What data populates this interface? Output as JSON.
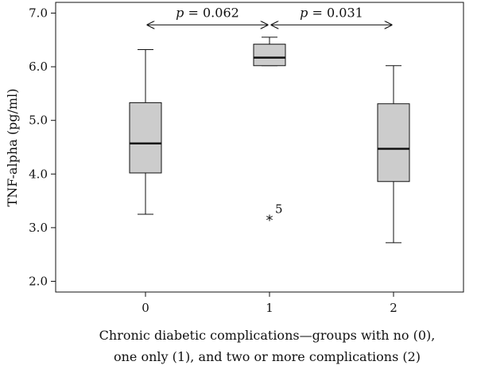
{
  "chart_data": {
    "type": "box",
    "ylabel": "TNF-alpha (pg/ml)",
    "xlabel_lines": [
      "Chronic diabetic complications—groups with no (0),",
      "one only (1), and two or more complications (2)"
    ],
    "ylim": [
      1.8,
      7.2
    ],
    "yticks": [
      2.0,
      3.0,
      4.0,
      5.0,
      6.0,
      7.0
    ],
    "ytick_labels": [
      "2.0",
      "3.0",
      "4.0",
      "5.0",
      "6.0",
      "7.0"
    ],
    "categories": [
      "0",
      "1",
      "2"
    ],
    "boxes": [
      {
        "category": "0",
        "whisker_low": 3.25,
        "q1": 4.02,
        "median": 4.57,
        "q3": 5.33,
        "whisker_high": 6.32
      },
      {
        "category": "1",
        "whisker_low": 6.02,
        "q1": 6.02,
        "median": 6.17,
        "q3": 6.42,
        "whisker_high": 6.55
      },
      {
        "category": "2",
        "whisker_low": 2.72,
        "q1": 3.86,
        "median": 4.47,
        "q3": 5.31,
        "whisker_high": 6.02
      }
    ],
    "outliers": [
      {
        "category": "1",
        "value": 3.18,
        "marker": "*",
        "label": "5"
      }
    ],
    "comparisons": [
      {
        "from": "0",
        "to": "1",
        "y": 6.78,
        "p_symbol": "p",
        "p_text": " = 0.062"
      },
      {
        "from": "1",
        "to": "2",
        "y": 6.78,
        "p_symbol": "p",
        "p_text": " = 0.031"
      }
    ],
    "box_fill": "#cccccc",
    "line_color": "#111111",
    "grid": false
  }
}
